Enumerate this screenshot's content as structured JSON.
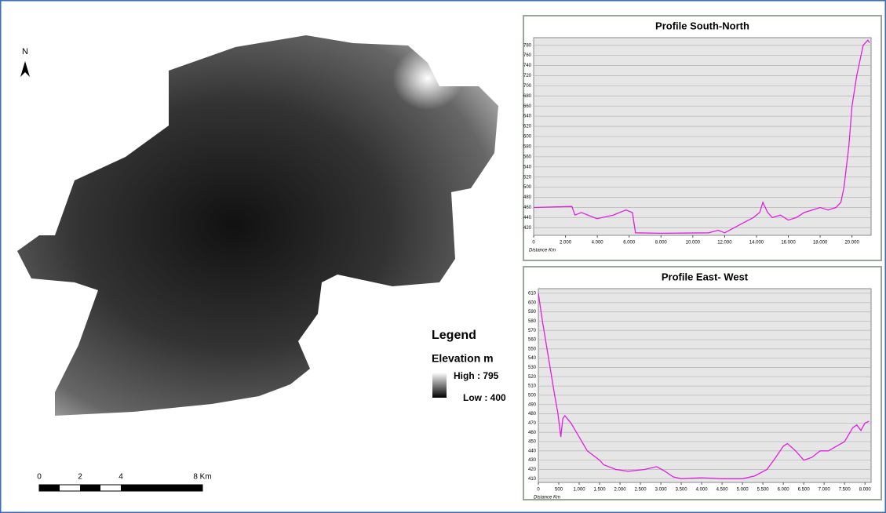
{
  "map": {
    "north": "N",
    "legend_title": "Legend",
    "legend_subtitle": "Elevation m",
    "high_label": "High : 795",
    "low_label": "Low : 400",
    "scale_labels": [
      "0",
      "2",
      "4",
      "8 Km"
    ]
  },
  "chart_data": [
    {
      "type": "line",
      "title": "Profile South-North",
      "x_label": "Distance Km",
      "color": "#e020e0",
      "grid": true,
      "x": [
        0,
        2400,
        2600,
        3000,
        3800,
        4000,
        5000,
        5800,
        6200,
        6400,
        8000,
        11000,
        11600,
        12000,
        12600,
        13200,
        13800,
        14200,
        14400,
        14700,
        15000,
        15500,
        16000,
        16500,
        17000,
        17500,
        18000,
        18500,
        19000,
        19300,
        19500,
        19800,
        20000,
        20300,
        20700,
        21000,
        21100
      ],
      "values": [
        460,
        462,
        445,
        450,
        440,
        438,
        445,
        455,
        450,
        410,
        409,
        410,
        415,
        410,
        420,
        430,
        440,
        450,
        470,
        450,
        440,
        445,
        435,
        440,
        450,
        455,
        460,
        455,
        460,
        470,
        500,
        580,
        660,
        720,
        780,
        790,
        785
      ],
      "xlim": [
        0,
        21200
      ],
      "ylim": [
        405,
        795
      ],
      "xticks": [
        0,
        {
          "value": 2000,
          "label": "2.000"
        },
        {
          "value": 4000,
          "label": "4.000"
        },
        {
          "value": 6000,
          "label": "6.000"
        },
        {
          "value": 8000,
          "label": "8.000"
        },
        {
          "value": 10000,
          "label": "10.000"
        },
        {
          "value": 12000,
          "label": "12.000"
        },
        {
          "value": 14000,
          "label": "14.000"
        },
        {
          "value": 16000,
          "label": "16.000"
        },
        {
          "value": 18000,
          "label": "18.000"
        },
        {
          "value": 20000,
          "label": "20.000"
        }
      ],
      "yticks": [
        420,
        440,
        460,
        480,
        500,
        520,
        540,
        560,
        580,
        600,
        620,
        640,
        660,
        680,
        700,
        720,
        740,
        760,
        780
      ]
    },
    {
      "type": "line",
      "title": "Profile East- West",
      "x_label": "Distance Km",
      "color": "#e020e0",
      "grid": true,
      "x": [
        0,
        100,
        250,
        400,
        480,
        550,
        600,
        650,
        800,
        1000,
        1200,
        1500,
        1600,
        1900,
        2200,
        2600,
        2900,
        3100,
        3300,
        3500,
        4000,
        4500,
        5000,
        5300,
        5600,
        5800,
        6000,
        6100,
        6300,
        6500,
        6700,
        6900,
        7100,
        7300,
        7500,
        7700,
        7800,
        7900,
        8000,
        8100
      ],
      "values": [
        610,
        580,
        540,
        500,
        480,
        455,
        475,
        478,
        470,
        455,
        440,
        430,
        425,
        420,
        418,
        420,
        423,
        418,
        412,
        410,
        411,
        410,
        410,
        413,
        420,
        432,
        445,
        448,
        440,
        430,
        433,
        440,
        440,
        445,
        450,
        465,
        468,
        462,
        470,
        472
      ],
      "xlim": [
        0,
        8150
      ],
      "ylim": [
        406,
        615
      ],
      "xticks": [
        0,
        500,
        {
          "value": 1000,
          "label": "1.000"
        },
        {
          "value": 1500,
          "label": "1.500"
        },
        {
          "value": 2000,
          "label": "2.000"
        },
        {
          "value": 2500,
          "label": "2.500"
        },
        {
          "value": 3000,
          "label": "3.000"
        },
        {
          "value": 3500,
          "label": "3.500"
        },
        {
          "value": 4000,
          "label": "4.000"
        },
        {
          "value": 4500,
          "label": "4.500"
        },
        {
          "value": 5000,
          "label": "5.000"
        },
        {
          "value": 5500,
          "label": "5.500"
        },
        {
          "value": 6000,
          "label": "6.000"
        },
        {
          "value": 6500,
          "label": "6.500"
        },
        {
          "value": 7000,
          "label": "7.000"
        },
        {
          "value": 7500,
          "label": "7.500"
        },
        {
          "value": 8000,
          "label": "8.000"
        }
      ],
      "yticks": [
        410,
        420,
        430,
        440,
        450,
        460,
        470,
        480,
        490,
        500,
        510,
        520,
        530,
        540,
        550,
        560,
        570,
        580,
        590,
        600,
        610
      ]
    }
  ]
}
